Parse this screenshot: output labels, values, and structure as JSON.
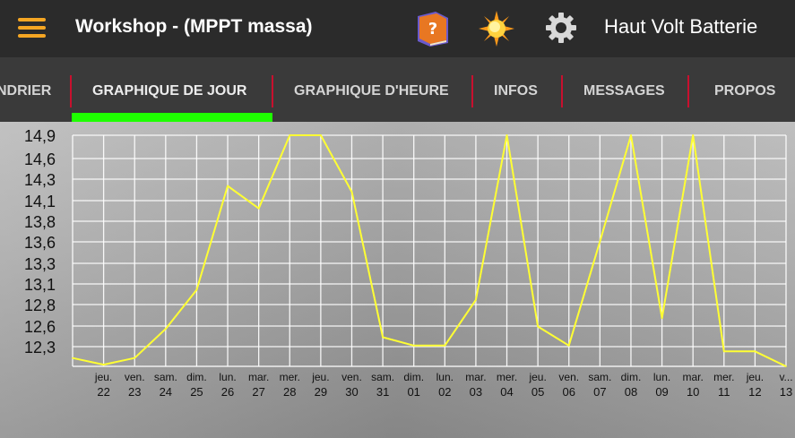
{
  "header": {
    "title": "Workshop - (MPPT massa)",
    "battery_name": "Haut Volt Batterie",
    "icons": [
      "menu-icon",
      "help-book-icon",
      "sun-icon",
      "gear-icon"
    ]
  },
  "tabs": [
    {
      "label": "NDRIER",
      "active": false
    },
    {
      "label": "GRAPHIQUE DE JOUR",
      "active": true
    },
    {
      "label": "GRAPHIQUE D'HEURE",
      "active": false
    },
    {
      "label": "INFOS",
      "active": false
    },
    {
      "label": "MESSAGES",
      "active": false
    },
    {
      "label": "PROPOS",
      "active": false
    }
  ],
  "colors": {
    "accent_menu": "#f5a623",
    "tab_indicator": "#1eff00",
    "tab_separator": "#c8102e",
    "line": "#ffff33"
  },
  "chart_data": {
    "type": "line",
    "title": "",
    "xlabel": "",
    "ylabel": "",
    "y_tick_labels": [
      "14,9",
      "14,6",
      "14,3",
      "14,1",
      "13,8",
      "13,6",
      "13,3",
      "13,1",
      "12,8",
      "12,6",
      "12,3"
    ],
    "ylim": [
      12.15,
      14.93
    ],
    "grid": true,
    "x_labels": [
      {
        "day": "jeu.",
        "date": "22"
      },
      {
        "day": "ven.",
        "date": "23"
      },
      {
        "day": "sam.",
        "date": "24"
      },
      {
        "day": "dim.",
        "date": "25"
      },
      {
        "day": "lun.",
        "date": "26"
      },
      {
        "day": "mar.",
        "date": "27"
      },
      {
        "day": "mer.",
        "date": "28"
      },
      {
        "day": "jeu.",
        "date": "29"
      },
      {
        "day": "ven.",
        "date": "30"
      },
      {
        "day": "sam.",
        "date": "31"
      },
      {
        "day": "dim.",
        "date": "01"
      },
      {
        "day": "lun.",
        "date": "02"
      },
      {
        "day": "mar.",
        "date": "03"
      },
      {
        "day": "mer.",
        "date": "04"
      },
      {
        "day": "jeu.",
        "date": "05"
      },
      {
        "day": "ven.",
        "date": "06"
      },
      {
        "day": "sam.",
        "date": "07"
      },
      {
        "day": "dim.",
        "date": "08"
      },
      {
        "day": "lun.",
        "date": "09"
      },
      {
        "day": "mar.",
        "date": "10"
      },
      {
        "day": "mer.",
        "date": "11"
      },
      {
        "day": "jeu.",
        "date": "12"
      },
      {
        "day": "v...",
        "date": "13"
      }
    ],
    "series": [
      {
        "values": [
          12.25,
          12.17,
          12.25,
          12.6,
          13.07,
          14.32,
          14.05,
          14.93,
          14.93,
          14.25,
          12.5,
          12.4,
          12.4,
          12.95,
          14.93,
          12.63,
          12.4,
          13.65,
          14.93,
          12.73,
          14.93,
          12.33,
          12.33,
          12.15
        ]
      }
    ]
  }
}
